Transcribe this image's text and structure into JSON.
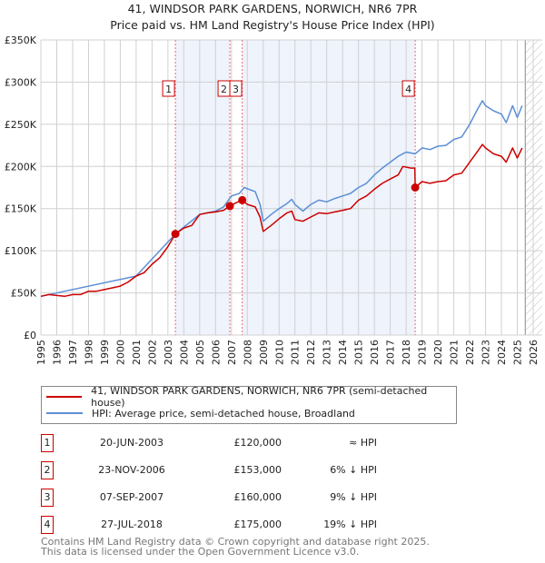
{
  "header": {
    "title": "41, WINDSOR PARK GARDENS, NORWICH, NR6 7PR",
    "subtitle": "Price paid vs. HM Land Registry's House Price Index (HPI)"
  },
  "chart_data": {
    "type": "line",
    "title": "41, WINDSOR PARK GARDENS, NORWICH, NR6 7PR",
    "xlabel": "",
    "ylabel": "",
    "xlim": [
      1995,
      2026
    ],
    "ylim": [
      0,
      350000
    ],
    "x_ticks": [
      "1995",
      "1996",
      "1997",
      "1998",
      "1999",
      "2000",
      "2001",
      "2002",
      "2003",
      "2004",
      "2005",
      "2006",
      "2007",
      "2008",
      "2009",
      "2010",
      "2011",
      "2012",
      "2013",
      "2014",
      "2015",
      "2016",
      "2017",
      "2018",
      "2019",
      "2020",
      "2021",
      "2022",
      "2023",
      "2024",
      "2025",
      "2026"
    ],
    "y_ticks": [
      {
        "v": 0,
        "label": "£0"
      },
      {
        "v": 50000,
        "label": "£50K"
      },
      {
        "v": 100000,
        "label": "£100K"
      },
      {
        "v": 150000,
        "label": "£150K"
      },
      {
        "v": 200000,
        "label": "£200K"
      },
      {
        "v": 250000,
        "label": "£250K"
      },
      {
        "v": 300000,
        "label": "£300K"
      },
      {
        "v": 350000,
        "label": "£350K"
      }
    ],
    "grid": true,
    "series": [
      {
        "name": "41, WINDSOR PARK GARDENS, NORWICH, NR6 7PR (semi-detached house)",
        "color": "#cc0000",
        "x": [
          1995,
          1995.5,
          1996,
          1996.5,
          1997,
          1997.5,
          1998,
          1998.5,
          1999,
          1999.5,
          2000,
          2000.5,
          2001,
          2001.5,
          2002,
          2002.5,
          2003,
          2003.47,
          2004,
          2004.5,
          2005,
          2005.5,
          2006,
          2006.5,
          2006.9,
          2007.3,
          2007.68,
          2008,
          2008.5,
          2008.8,
          2009,
          2009.5,
          2010,
          2010.5,
          2010.8,
          2011,
          2011.5,
          2012,
          2012.5,
          2013,
          2013.5,
          2014,
          2014.5,
          2015,
          2015.5,
          2016,
          2016.5,
          2017,
          2017.5,
          2017.8,
          2018.3,
          2018.55,
          2018.57,
          2019,
          2019.5,
          2020,
          2020.5,
          2021,
          2021.5,
          2022,
          2022.5,
          2022.8,
          2023,
          2023.5,
          2024,
          2024.3,
          2024.7,
          2025,
          2025.3
        ],
        "values": [
          46000,
          48000,
          47000,
          46000,
          48000,
          48000,
          52000,
          52000,
          54000,
          56000,
          58000,
          63000,
          70000,
          74000,
          84000,
          92000,
          105000,
          120000,
          127000,
          130000,
          143000,
          145000,
          146000,
          148000,
          153000,
          157000,
          160000,
          155000,
          152000,
          140000,
          123000,
          130000,
          138000,
          145000,
          147000,
          137000,
          135000,
          140000,
          145000,
          144000,
          146000,
          148000,
          150000,
          160000,
          165000,
          173000,
          180000,
          185000,
          190000,
          200000,
          198000,
          198000,
          175000,
          182000,
          180000,
          182000,
          183000,
          190000,
          192000,
          205000,
          218000,
          226000,
          222000,
          215000,
          212000,
          205000,
          222000,
          210000,
          222000
        ]
      },
      {
        "name": "HPI: Average price, semi-detached house, Broadland",
        "color": "#5b8fd6",
        "x": [
          1995,
          2001,
          2003.47,
          2005,
          2006,
          2006.5,
          2007,
          2007.5,
          2007.8,
          2008.5,
          2008.8,
          2009,
          2009.5,
          2010,
          2010.5,
          2010.8,
          2011,
          2011.5,
          2012,
          2012.5,
          2013,
          2013.5,
          2014,
          2014.5,
          2015,
          2015.5,
          2016,
          2016.5,
          2017,
          2017.5,
          2018,
          2018.57,
          2019,
          2019.5,
          2020,
          2020.5,
          2021,
          2021.5,
          2022,
          2022.5,
          2022.8,
          2023,
          2023.5,
          2024,
          2024.3,
          2024.7,
          2025,
          2025.3
        ],
        "values": [
          46000,
          70000,
          120000,
          143000,
          147000,
          152000,
          165000,
          168000,
          175000,
          170000,
          155000,
          135000,
          143000,
          150000,
          156000,
          161000,
          155000,
          147000,
          155000,
          160000,
          158000,
          162000,
          165000,
          168000,
          175000,
          180000,
          190000,
          198000,
          205000,
          212000,
          217000,
          215000,
          222000,
          220000,
          224000,
          225000,
          232000,
          235000,
          250000,
          268000,
          278000,
          272000,
          266000,
          262000,
          252000,
          272000,
          258000,
          272000
        ]
      }
    ],
    "sales": [
      {
        "n": "1",
        "x": 2003.47,
        "value": 120000,
        "date": "20-JUN-2003",
        "price": "£120,000",
        "rel": "≈ HPI"
      },
      {
        "n": "2",
        "x": 2006.9,
        "value": 153000,
        "date": "23-NOV-2006",
        "price": "£153,000",
        "rel": "6% ↓ HPI"
      },
      {
        "n": "3",
        "x": 2007.68,
        "value": 160000,
        "date": "07-SEP-2007",
        "price": "£160,000",
        "rel": "9% ↓ HPI"
      },
      {
        "n": "4",
        "x": 2018.57,
        "value": 175000,
        "date": "27-JUL-2018",
        "price": "£175,000",
        "rel": "19% ↓ HPI"
      }
    ],
    "shaded_ranges": [
      [
        2003.47,
        2006.9
      ],
      [
        2007.68,
        2018.57
      ]
    ],
    "forecast_from": 2025.5
  },
  "legend": {
    "items": [
      "41, WINDSOR PARK GARDENS, NORWICH, NR6 7PR (semi-detached house)",
      "HPI: Average price, semi-detached house, Broadland"
    ]
  },
  "footer": {
    "line1": "Contains HM Land Registry data © Crown copyright and database right 2025.",
    "line2": "This data is licensed under the Open Government Licence v3.0."
  }
}
